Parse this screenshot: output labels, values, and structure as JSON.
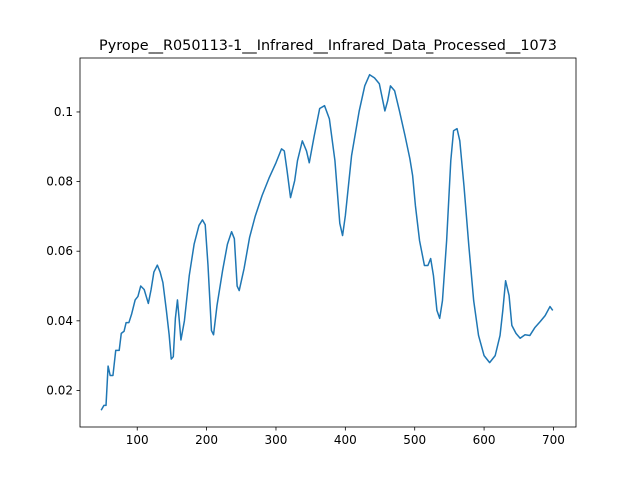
{
  "chart_data": {
    "type": "line",
    "title": "Pyrope__R050113-1__Infrared__Infrared_Data_Processed__1073",
    "x": [
      48,
      52,
      55,
      58,
      61,
      65,
      69,
      74,
      77,
      81,
      84,
      88,
      92,
      97,
      101,
      105,
      110,
      116,
      120,
      124,
      129,
      133,
      137,
      142,
      146,
      149,
      152,
      155,
      158,
      160,
      163,
      168,
      175,
      182,
      189,
      194,
      198,
      202,
      207,
      210,
      215,
      223,
      230,
      236,
      240,
      244,
      247,
      254,
      262,
      270,
      280,
      290,
      300,
      308,
      312,
      316,
      321,
      327,
      331,
      338,
      344,
      348,
      355,
      363,
      370,
      377,
      385,
      392,
      396,
      400,
      409,
      420,
      428,
      435,
      442,
      449,
      457,
      461,
      465,
      471,
      478,
      486,
      493,
      497,
      501,
      507,
      514,
      519,
      523,
      527,
      532,
      536,
      540,
      546,
      552,
      556,
      561,
      565,
      571,
      578,
      585,
      592,
      600,
      608,
      616,
      623,
      627,
      631,
      636,
      640,
      646,
      652,
      659,
      666,
      673,
      681,
      688,
      695,
      699
    ],
    "series": [
      {
        "color": "#1f77b4",
        "values": [
          0.0143,
          0.0157,
          0.0157,
          0.027,
          0.0243,
          0.0243,
          0.0315,
          0.0315,
          0.0364,
          0.037,
          0.0395,
          0.0395,
          0.042,
          0.046,
          0.047,
          0.05,
          0.049,
          0.045,
          0.049,
          0.054,
          0.056,
          0.054,
          0.051,
          0.043,
          0.036,
          0.029,
          0.0297,
          0.0407,
          0.046,
          0.0415,
          0.0345,
          0.04,
          0.053,
          0.062,
          0.0674,
          0.069,
          0.0676,
          0.056,
          0.0372,
          0.036,
          0.0444,
          0.0544,
          0.062,
          0.0656,
          0.0636,
          0.05,
          0.0487,
          0.055,
          0.064,
          0.07,
          0.076,
          0.081,
          0.0854,
          0.0894,
          0.0888,
          0.0831,
          0.0754,
          0.0803,
          0.086,
          0.0917,
          0.0888,
          0.0854,
          0.093,
          0.101,
          0.1018,
          0.098,
          0.086,
          0.068,
          0.0645,
          0.0702,
          0.0875,
          0.1003,
          0.1075,
          0.1107,
          0.1098,
          0.1081,
          0.1003,
          0.1032,
          0.1075,
          0.1061,
          0.1003,
          0.0932,
          0.0866,
          0.0817,
          0.0731,
          0.063,
          0.0559,
          0.0559,
          0.0579,
          0.053,
          0.043,
          0.0407,
          0.0458,
          0.063,
          0.086,
          0.0946,
          0.0952,
          0.0917,
          0.0788,
          0.0616,
          0.0458,
          0.0358,
          0.03,
          0.028,
          0.03,
          0.0358,
          0.043,
          0.0515,
          0.0473,
          0.0387,
          0.0364,
          0.035,
          0.036,
          0.0358,
          0.038,
          0.0398,
          0.0415,
          0.0441,
          0.043
        ]
      }
    ],
    "xlim": [
      17.5,
      732.5
    ],
    "ylim": [
      0.0095,
      0.1155
    ],
    "xticks": [
      100,
      200,
      300,
      400,
      500,
      600,
      700
    ],
    "yticks": [
      0.02,
      0.04,
      0.06,
      0.08,
      0.1
    ]
  }
}
